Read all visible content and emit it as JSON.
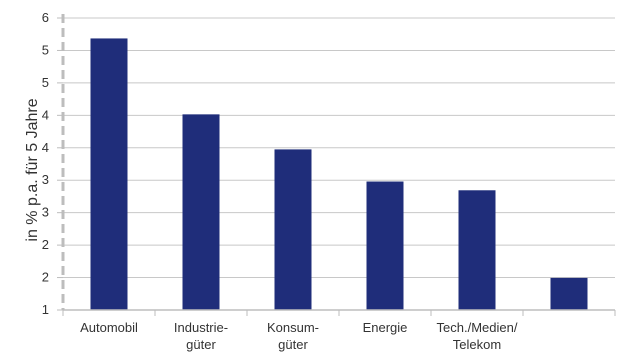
{
  "chart_data": {
    "type": "bar",
    "title": "",
    "xlabel": "",
    "ylabel": "in % p.a. für 5 Jahre",
    "y_tick_labels": [
      "1",
      "2",
      "2",
      "3",
      "3",
      "4",
      "4",
      "5",
      "5",
      "6"
    ],
    "ylim": [
      1,
      6
    ],
    "grid": true,
    "legend": "none",
    "bar_color": "#1f2d7a",
    "categories": [
      {
        "label_lines": [
          "Automobil"
        ]
      },
      {
        "label_lines": [
          "Industrie-",
          "güter"
        ]
      },
      {
        "label_lines": [
          "Konsum-",
          "güter"
        ]
      },
      {
        "label_lines": [
          "Energie"
        ]
      },
      {
        "label_lines": [
          "Tech./Medien/",
          "Telekom"
        ]
      },
      {
        "label_lines": [
          ""
        ]
      }
    ],
    "values": [
      5.65,
      4.35,
      3.75,
      3.2,
      3.05,
      1.55
    ]
  }
}
